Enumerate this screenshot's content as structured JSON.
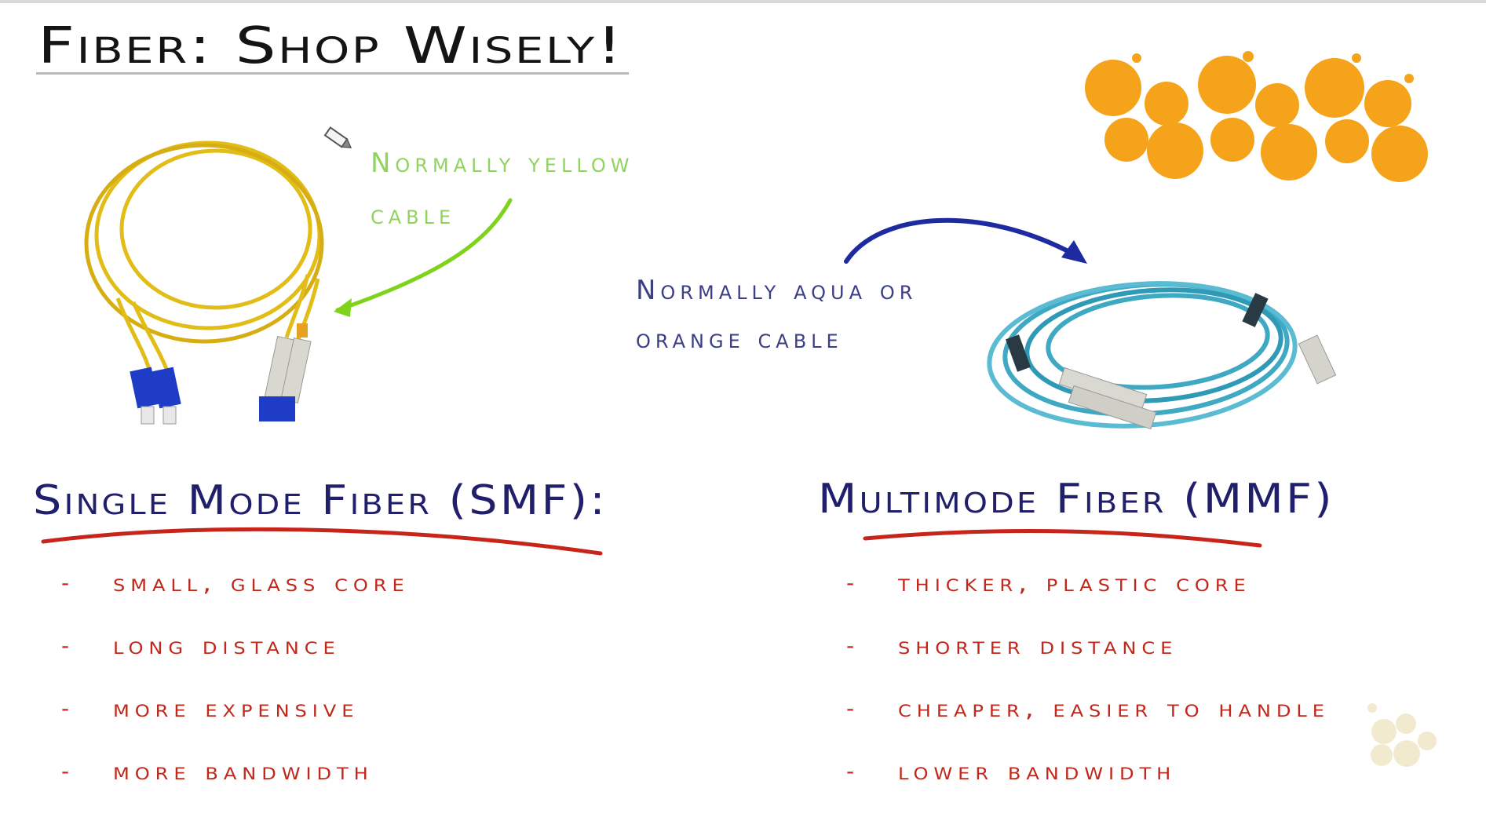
{
  "slide": {
    "title": "Fiber: Shop Wisely!",
    "notes": {
      "single_mode_cable": [
        "Normally yellow",
        "cable"
      ],
      "multimode_cable": [
        "Normally aqua or",
        "orange cable"
      ]
    },
    "single_mode": {
      "heading": "Single Mode Fiber (SMF):",
      "points": [
        "small, glass core",
        "long distance",
        "more expensive",
        "more bandwidth"
      ]
    },
    "multimode": {
      "heading": "Multimode Fiber (MMF)",
      "points": [
        "thicker, plastic core",
        "shorter distance",
        "cheaper, easier to handle",
        "lower bandwidth"
      ]
    },
    "list_marker": "-"
  },
  "colors": {
    "title": "#141414",
    "heading": "#1f1f6b",
    "list_text": "#c0281c",
    "underline_red": "#c7241a",
    "note_green": "#8fd45f",
    "arrow_green": "#7fd31a",
    "note_blue": "#3a3f86",
    "arrow_blue": "#1d2aa0",
    "logo_orange": "#f5a31a",
    "yellow_cable": "#e7c21f",
    "aqua_cable": "#3fa9c3",
    "connector_blue": "#1f3cc7"
  },
  "icons": [
    "pencil-cursor-icon",
    "orange-dot-cluster-logo",
    "yellow-fiber-cable-image",
    "aqua-fiber-cable-image",
    "watermark-dot-logo"
  ]
}
